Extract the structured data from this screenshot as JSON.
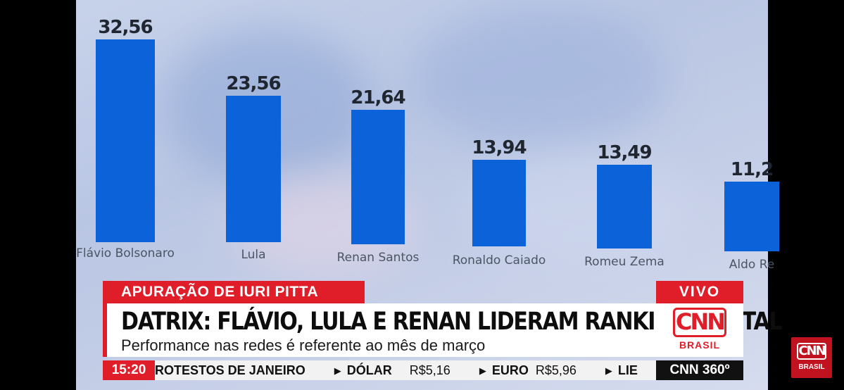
{
  "chart_data": {
    "type": "bar",
    "categories": [
      "Flávio Bolsonaro",
      "Lula",
      "Renan Santos",
      "Ronaldo Caiado",
      "Romeu Zema",
      "Aldo Re"
    ],
    "values": [
      32.56,
      23.56,
      21.64,
      13.94,
      13.49,
      11.2
    ],
    "value_labels": [
      "32,56",
      "23,56",
      "21,64",
      "13,94",
      "13,49",
      "11,2"
    ],
    "bar_color": "#0b62d9"
  },
  "lower_third": {
    "tag": "APURAÇÃO DE IURI PITTA",
    "live": "VIVO",
    "headline": "DATRIX: FLÁVIO, LULA E RENAN LIDERAM RANKING DIGITAL",
    "subheadline": "Performance nas redes é referente ao mês de março",
    "logo_main": "CNN",
    "logo_sub": "BRASIL"
  },
  "ticker": {
    "time": "15:20",
    "items": [
      {
        "label": "ROTESTOS DE JANEIRO",
        "value": ""
      },
      {
        "label": "DÓLAR",
        "value": "R$5,16"
      },
      {
        "label": "EURO",
        "value": "R$5,96"
      },
      {
        "label": "LIE",
        "value": ""
      }
    ],
    "program": "CNN 360º"
  },
  "corner_logo": {
    "main": "CNN",
    "sub": "BRASIL"
  },
  "colors": {
    "accent": "#e01e2a",
    "bar": "#0b62d9"
  }
}
